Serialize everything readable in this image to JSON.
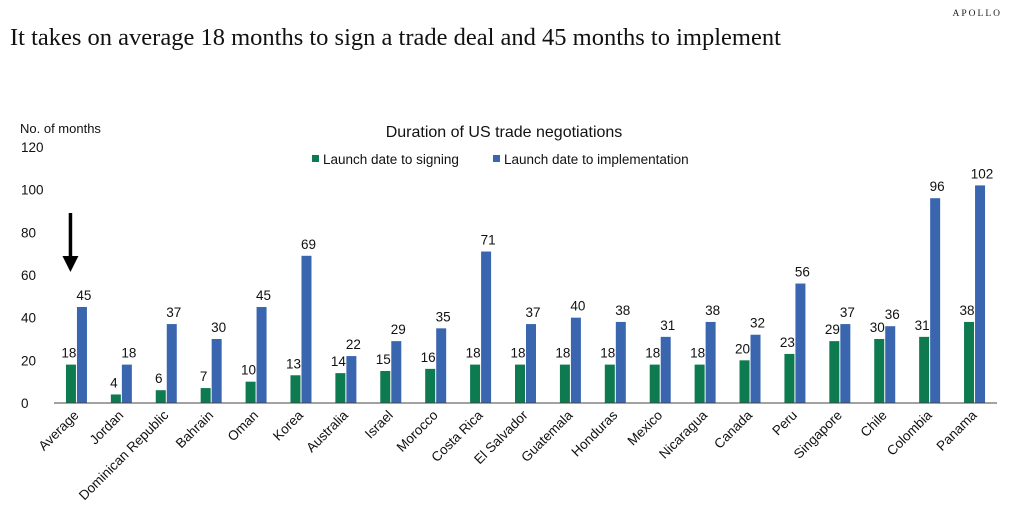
{
  "brand": "APOLLO",
  "headline": "It takes on average 18 months to sign a trade deal and 45 months to implement",
  "colors": {
    "signing": "#0d7a4f",
    "implementation": "#3a66b0",
    "arrow": "#000000"
  },
  "chart_data": {
    "type": "bar",
    "title": "Duration of US trade negotiations",
    "ylabel": "No. of months",
    "xlabel": "",
    "ylim": [
      0,
      120
    ],
    "yticks": [
      0,
      20,
      40,
      60,
      80,
      100,
      120
    ],
    "grid": false,
    "legend_position": "top-center",
    "categories": [
      "Average",
      "Jordan",
      "Dominican Republic",
      "Bahrain",
      "Oman",
      "Korea",
      "Australia",
      "Israel",
      "Morocco",
      "Costa Rica",
      "El Salvador",
      "Guatemala",
      "Honduras",
      "Mexico",
      "Nicaragua",
      "Canada",
      "Peru",
      "Singapore",
      "Chile",
      "Colombia",
      "Panama"
    ],
    "series": [
      {
        "name": "Launch date to signing",
        "values": [
          18,
          4,
          6,
          7,
          10,
          13,
          14,
          15,
          16,
          18,
          18,
          18,
          18,
          18,
          18,
          20,
          23,
          29,
          30,
          31,
          38
        ]
      },
      {
        "name": "Launch date to implementation",
        "values": [
          45,
          18,
          37,
          30,
          45,
          69,
          22,
          29,
          35,
          71,
          37,
          40,
          38,
          31,
          38,
          32,
          56,
          37,
          36,
          96,
          102
        ]
      }
    ],
    "annotations": [
      {
        "type": "arrow",
        "target": "Average",
        "direction": "down"
      }
    ]
  }
}
